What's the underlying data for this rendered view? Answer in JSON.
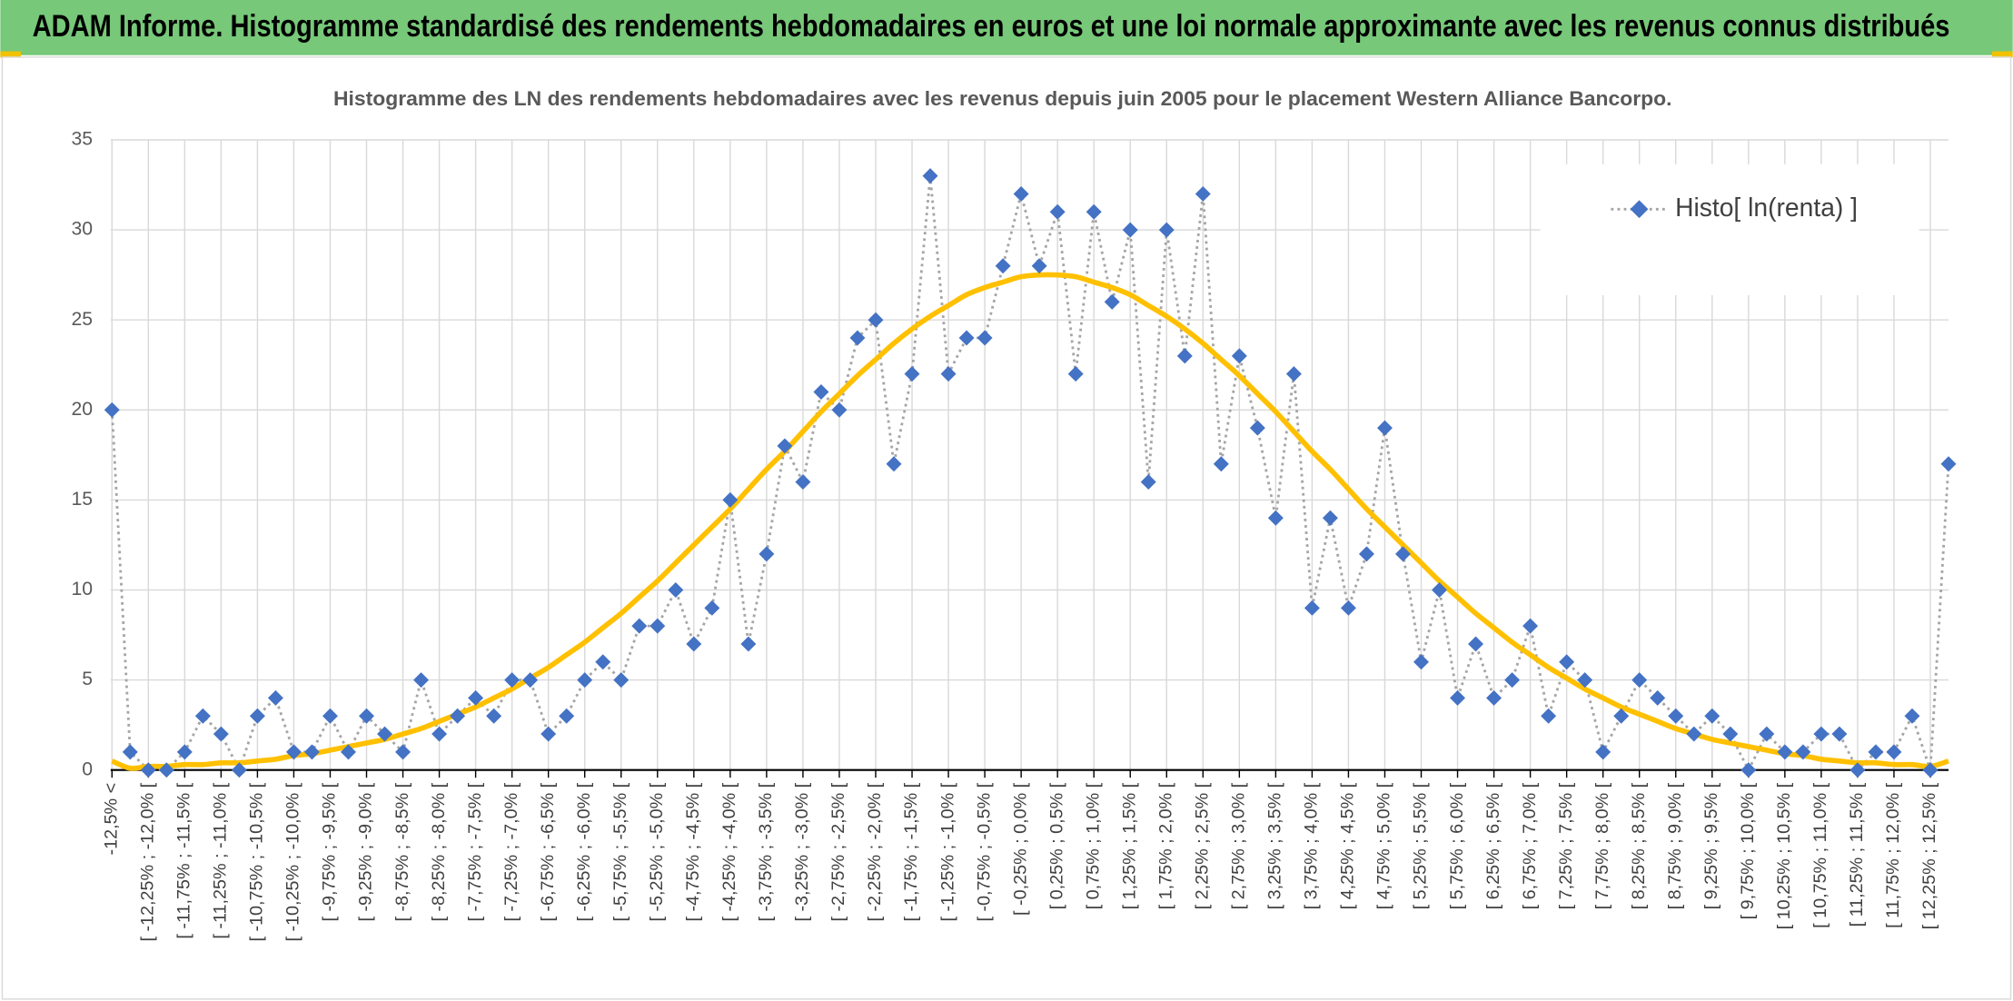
{
  "chart_data": {
    "type": "line",
    "title": "ADAM Informe. Histogramme standardisé des rendements hebdomadaires en euros et une loi normale approximante avec les revenus connus distribués",
    "subtitle": "Histogramme des LN des rendements hebdomadaires avec les revenus depuis juin 2005 pour le placement Western Alliance Bancorpo.",
    "categories": [
      "-12,5% <",
      null,
      "[ -12,25% ; -12,0% [",
      null,
      "[ -11,75% ; -11,5% [",
      null,
      "[ -11,25% ; -11,0% [",
      null,
      "[ -10,75% ; -10,5% [",
      null,
      "[ -10,25% ; -10,0% [",
      null,
      "[ -9,75% ; -9,5% [",
      null,
      "[ -9,25% ; -9,0% [",
      null,
      "[ -8,75% ; -8,5% [",
      null,
      "[ -8,25% ; -8,0% [",
      null,
      "[ -7,75% ; -7,5% [",
      null,
      "[ -7,25% ; -7,0% [",
      null,
      "[ -6,75% ; -6,5% [",
      null,
      "[ -6,25% ; -6,0% [",
      null,
      "[ -5,75% ; -5,5% [",
      null,
      "[ -5,25% ; -5,0% [",
      null,
      "[ -4,75% ; -4,5% [",
      null,
      "[ -4,25% ; -4,0% [",
      null,
      "[ -3,75% ; -3,5% [",
      null,
      "[ -3,25% ; -3,0% [",
      null,
      "[ -2,75% ; -2,5% [",
      null,
      "[ -2,25% ; -2,0% [",
      null,
      "[ -1,75% ; -1,5% [",
      null,
      "[ -1,25% ; -1,0% [",
      null,
      "[ -0,75% ; -0,5% [",
      null,
      "[ -0,25% ; 0,0% [",
      null,
      "[ 0,25% ; 0,5% [",
      null,
      "[ 0,75% ; 1,0% [",
      null,
      "[ 1,25% ; 1,5% [",
      null,
      "[ 1,75% ; 2,0% [",
      null,
      "[ 2,25% ; 2,5% [",
      null,
      "[ 2,75% ; 3,0% [",
      null,
      "[ 3,25% ; 3,5% [",
      null,
      "[ 3,75% ; 4,0% [",
      null,
      "[ 4,25% ; 4,5% [",
      null,
      "[ 4,75% ; 5,0% [",
      null,
      "[ 5,25% ; 5,5% [",
      null,
      "[ 5,75% ; 6,0% [",
      null,
      "[ 6,25% ; 6,5% [",
      null,
      "[ 6,75% ; 7,0% [",
      null,
      "[ 7,25% ; 7,5% [",
      null,
      "[ 7,75% ; 8,0% [",
      null,
      "[ 8,25% ; 8,5% [",
      null,
      "[ 8,75% ; 9,0% [",
      null,
      "[ 9,25% ; 9,5% [",
      null,
      "[ 9,75% ; 10,0% [",
      null,
      "[ 10,25% ; 10,5% [",
      null,
      "[ 10,75% ; 11,0% [",
      null,
      "[ 11,25% ; 11,5% [",
      null,
      "[ 11,75% ; 12,0% [",
      null,
      "[ 12,25% ; 12,5% [",
      null
    ],
    "series": [
      {
        "name": "Histo[ ln(renta) ]",
        "color": "#4472c4",
        "values": [
          20,
          1,
          0,
          0,
          1,
          3,
          2,
          0,
          3,
          4,
          1,
          1,
          3,
          1,
          3,
          2,
          1,
          5,
          2,
          3,
          4,
          3,
          5,
          5,
          2,
          3,
          5,
          6,
          5,
          8,
          8,
          10,
          7,
          9,
          15,
          7,
          12,
          18,
          16,
          21,
          20,
          24,
          25,
          17,
          22,
          33,
          22,
          24,
          24,
          28,
          32,
          28,
          31,
          22,
          31,
          26,
          30,
          16,
          30,
          23,
          32,
          17,
          23,
          19,
          14,
          22,
          9,
          14,
          9,
          12,
          19,
          12,
          6,
          10,
          4,
          7,
          4,
          5,
          8,
          3,
          6,
          5,
          1,
          3,
          5,
          4,
          3,
          2,
          3,
          2,
          0,
          2,
          1,
          1,
          2,
          2,
          0,
          1,
          1,
          3,
          0,
          17
        ]
      },
      {
        "color": "#ffc000",
        "values": [
          0.5,
          0.1,
          0.2,
          0.2,
          0.3,
          0.3,
          0.4,
          0.4,
          0.5,
          0.6,
          0.8,
          0.9,
          1.1,
          1.3,
          1.5,
          1.7,
          2.0,
          2.3,
          2.7,
          3.1,
          3.5,
          4.0,
          4.5,
          5.1,
          5.7,
          6.4,
          7.1,
          7.9,
          8.7,
          9.6,
          10.5,
          11.5,
          12.5,
          13.5,
          14.5,
          15.6,
          16.7,
          17.7,
          18.8,
          19.9,
          20.9,
          21.9,
          22.8,
          23.7,
          24.5,
          25.2,
          25.8,
          26.4,
          26.8,
          27.1,
          27.4,
          27.5,
          27.5,
          27.4,
          27.1,
          26.8,
          26.4,
          25.8,
          25.2,
          24.5,
          23.7,
          22.8,
          21.9,
          20.9,
          19.9,
          18.8,
          17.7,
          16.7,
          15.6,
          14.5,
          13.5,
          12.5,
          11.5,
          10.5,
          9.6,
          8.7,
          7.9,
          7.1,
          6.4,
          5.7,
          5.1,
          4.5,
          4.0,
          3.5,
          3.1,
          2.7,
          2.3,
          2.0,
          1.7,
          1.5,
          1.3,
          1.1,
          0.9,
          0.8,
          0.6,
          0.5,
          0.4,
          0.4,
          0.3,
          0.3,
          0.2,
          0.5
        ]
      }
    ],
    "ylim": [
      0,
      35
    ],
    "yticks": [
      0,
      5,
      10,
      15,
      20,
      25,
      30,
      35
    ],
    "grid": true,
    "legend": "top-right"
  }
}
